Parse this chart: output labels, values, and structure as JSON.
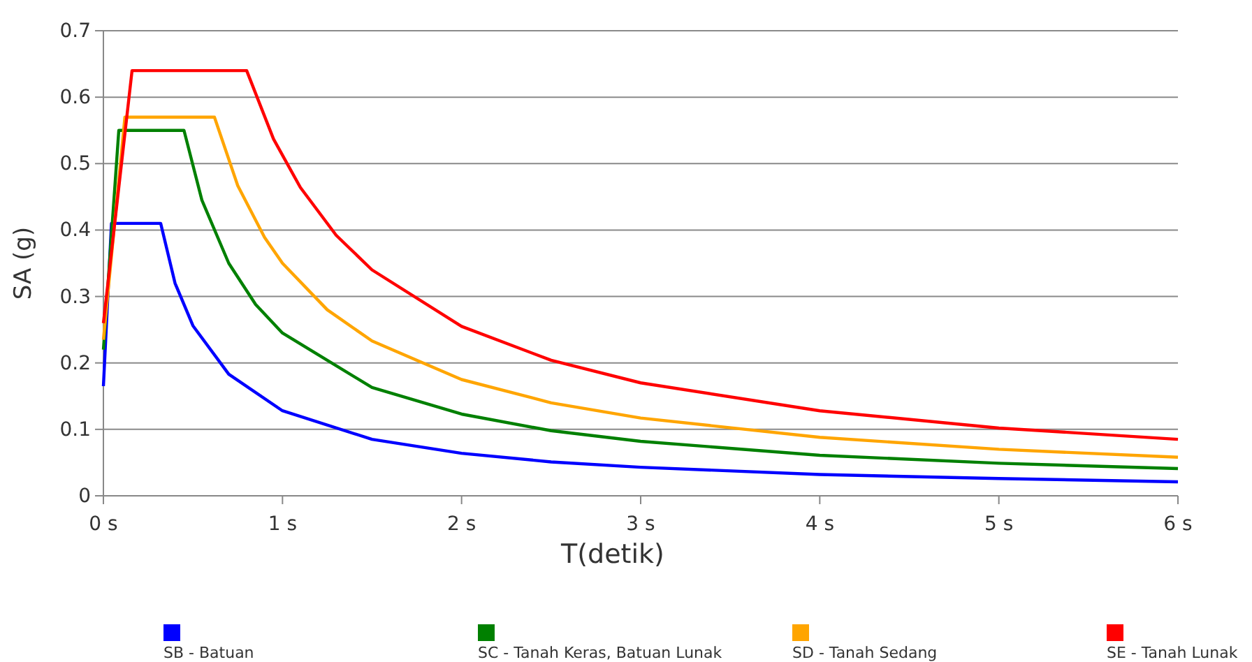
{
  "chart_data": {
    "type": "line",
    "xlabel": "T(detik)",
    "ylabel": "SA (g)",
    "xlim": [
      0,
      6
    ],
    "xticks": [
      {
        "value": 0,
        "label": "0 s"
      },
      {
        "value": 1,
        "label": "1 s"
      },
      {
        "value": 2,
        "label": "2 s"
      },
      {
        "value": 3,
        "label": "3 s"
      },
      {
        "value": 4,
        "label": "4 s"
      },
      {
        "value": 5,
        "label": "5 s"
      },
      {
        "value": 6,
        "label": "6 s"
      }
    ],
    "ylim": [
      0,
      0.7
    ],
    "yticks": [
      0,
      0.1,
      0.2,
      0.3,
      0.4,
      0.5,
      0.6,
      0.7
    ],
    "grid": "y",
    "legend": "bottom",
    "marker": "none",
    "line_style": "solid",
    "series": [
      {
        "name": "SB - Batuan",
        "color": "#0000ff",
        "x": [
          0,
          0.045,
          0.32,
          0.4,
          0.5,
          0.7,
          1,
          1.5,
          2,
          2.5,
          3,
          4,
          5,
          6
        ],
        "values": [
          0.165,
          0.41,
          0.41,
          0.32,
          0.256,
          0.183,
          0.128,
          0.085,
          0.064,
          0.051,
          0.043,
          0.032,
          0.026,
          0.021
        ]
      },
      {
        "name": "SC - Tanah Keras, Batuan Lunak",
        "color": "#008000",
        "x": [
          0,
          0.086,
          0.45,
          0.55,
          0.7,
          0.85,
          1,
          1.5,
          2,
          2.5,
          3,
          4,
          5,
          6
        ],
        "values": [
          0.22,
          0.55,
          0.55,
          0.445,
          0.35,
          0.288,
          0.245,
          0.163,
          0.123,
          0.098,
          0.082,
          0.061,
          0.049,
          0.041
        ]
      },
      {
        "name": "SD - Tanah Sedang",
        "color": "#ffa500",
        "x": [
          0,
          0.12,
          0.62,
          0.75,
          0.9,
          1,
          1.25,
          1.5,
          2,
          2.5,
          3,
          4,
          5,
          6
        ],
        "values": [
          0.235,
          0.57,
          0.57,
          0.467,
          0.389,
          0.35,
          0.28,
          0.233,
          0.175,
          0.14,
          0.117,
          0.088,
          0.07,
          0.058
        ]
      },
      {
        "name": "SE - Tanah Lunak",
        "color": "#ff0000",
        "x": [
          0,
          0.16,
          0.8,
          0.95,
          1.1,
          1.3,
          1.5,
          2,
          2.5,
          3,
          4,
          5,
          6
        ],
        "values": [
          0.26,
          0.64,
          0.64,
          0.537,
          0.464,
          0.392,
          0.34,
          0.255,
          0.204,
          0.17,
          0.128,
          0.102,
          0.085
        ]
      }
    ]
  }
}
